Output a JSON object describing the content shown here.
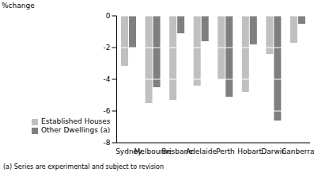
{
  "chart_data": {
    "type": "bar",
    "ylabel": "%change",
    "categories": [
      "Sydney",
      "Melbourne",
      "Brisbane",
      "Adelaide",
      "Perth",
      "Hobart",
      "Darwin",
      "Canberra"
    ],
    "series": [
      {
        "name": "Established Houses",
        "color": "#c0c0c0",
        "values": [
          -3.15,
          -5.5,
          -5.3,
          -4.4,
          -4.0,
          -4.8,
          -2.4,
          -1.7
        ]
      },
      {
        "name": "Other Dwellings (a)",
        "color": "#7f7f7f",
        "values": [
          -2.0,
          -4.5,
          -1.1,
          -1.6,
          -5.1,
          -1.8,
          -6.6,
          -0.5
        ]
      }
    ],
    "ylim": [
      -8,
      0
    ],
    "yticks": [
      -8,
      -6,
      -4,
      -2,
      0
    ],
    "grid": true,
    "legend": "lower left",
    "annotations": [
      "(a) Series are experimental and subject to revision"
    ]
  }
}
